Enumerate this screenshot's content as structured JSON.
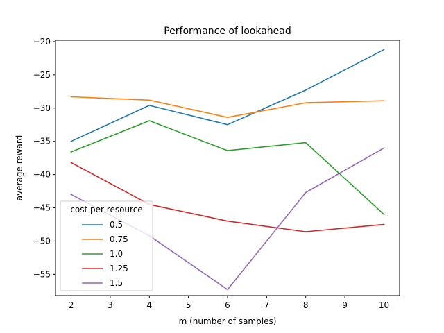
{
  "chart_data": {
    "type": "line",
    "title": "Performance of lookahead",
    "xlabel": "m (number of samples)",
    "ylabel": "average reward",
    "x": [
      2,
      4,
      6,
      8,
      10
    ],
    "xlim": [
      1.6,
      10.4
    ],
    "ylim": [
      -58.2,
      -19.8
    ],
    "xticks": [
      2,
      3,
      4,
      5,
      6,
      7,
      8,
      9,
      10
    ],
    "yticks": [
      -55,
      -50,
      -45,
      -40,
      -35,
      -30,
      -25,
      -20
    ],
    "grid": false,
    "legend": {
      "title": "cost per resource",
      "placement": "lower-left"
    },
    "series": [
      {
        "name": "0.5",
        "color": "#1f77b4",
        "values": [
          -35.0,
          -29.6,
          -32.5,
          -27.3,
          -21.2
        ]
      },
      {
        "name": "0.75",
        "color": "#ff7f0e",
        "values": [
          -28.3,
          -28.8,
          -31.4,
          -29.2,
          -28.9
        ]
      },
      {
        "name": "1.0",
        "color": "#2ca02c",
        "values": [
          -36.6,
          -31.9,
          -36.4,
          -35.2,
          -46.0
        ]
      },
      {
        "name": "1.25",
        "color": "#d62728",
        "values": [
          -38.2,
          -44.5,
          -47.0,
          -48.6,
          -47.5
        ]
      },
      {
        "name": "1.5",
        "color": "#9467bd",
        "values": [
          -43.0,
          -49.2,
          -57.3,
          -42.7,
          -36.0
        ]
      }
    ]
  }
}
